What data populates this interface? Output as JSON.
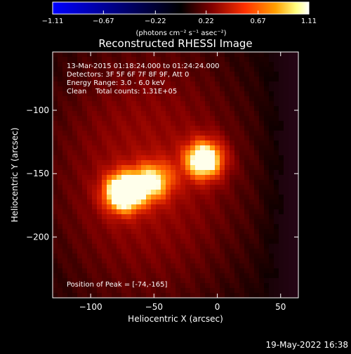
{
  "chart_data": {
    "type": "heatmap",
    "title": "Reconstructed RHESSI Image",
    "xlabel": "Heliocentric X (arcsec)",
    "ylabel": "Heliocentric Y (arcsec)",
    "xlim": [
      -130,
      64
    ],
    "ylim": [
      -248,
      -54
    ],
    "xticks": [
      {
        "value": -100,
        "label": "−100"
      },
      {
        "value": -50,
        "label": "−50"
      },
      {
        "value": 0,
        "label": "0"
      },
      {
        "value": 50,
        "label": "50"
      }
    ],
    "yticks": [
      {
        "value": -100,
        "label": "−100"
      },
      {
        "value": -150,
        "label": "−150"
      },
      {
        "value": -200,
        "label": "−200"
      }
    ],
    "colorbar": {
      "range": [
        -1.11,
        1.11
      ],
      "ticks": [
        {
          "value": -1.11,
          "label": "−1.11"
        },
        {
          "value": -0.67,
          "label": "−0.67"
        },
        {
          "value": -0.22,
          "label": "−0.22"
        },
        {
          "value": 0.22,
          "label": "0.22"
        },
        {
          "value": 0.67,
          "label": "0.67"
        },
        {
          "value": 1.11,
          "label": "1.11"
        }
      ],
      "units": "(photons cm⁻² s⁻¹ asec⁻²)",
      "colormap": [
        "#0000ff",
        "#000000",
        "#7f0000",
        "#ff3000",
        "#ffa000",
        "#ffff80",
        "#ffffff"
      ]
    },
    "annotations": [
      "13-Mar-2015 01:18:24.000 to 01:24:24.000",
      "Detectors: 3F 5F 6F 7F 8F 9F, Att 0",
      "Energy Range: 3.0 - 6.0 keV",
      "Clean    Total counts: 1.31E+05"
    ],
    "peak_label": "Position of Peak = [-74,-165]",
    "peak": [
      -74,
      -165
    ],
    "sources": [
      {
        "x": -74,
        "y": -165,
        "intensity": 1.11
      },
      {
        "x": -50,
        "y": -156,
        "intensity": 0.65
      },
      {
        "x": -10,
        "y": -139,
        "intensity": 1.0
      }
    ]
  },
  "footer": {
    "timestamp": "19-May-2022 16:38"
  }
}
